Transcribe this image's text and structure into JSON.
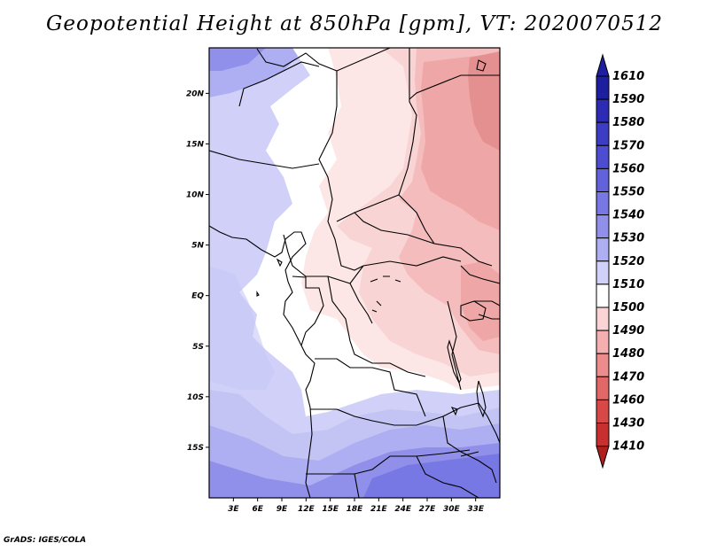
{
  "title": "Geopotential Height at 850hPa [gpm], VT: 2020070512",
  "credit": "GrADS: IGES/COLA",
  "map": {
    "lat_range": [
      -20,
      24.5
    ],
    "lon_range": [
      0,
      36
    ],
    "lat_ticks": [
      "20N",
      "15N",
      "10N",
      "5N",
      "EQ",
      "5S",
      "10S",
      "15S"
    ],
    "lat_tick_values": [
      20,
      15,
      10,
      5,
      0,
      -5,
      -10,
      -15
    ],
    "lon_ticks": [
      "3E",
      "6E",
      "9E",
      "12E",
      "15E",
      "18E",
      "21E",
      "24E",
      "27E",
      "30E",
      "33E"
    ],
    "lon_tick_values": [
      3,
      6,
      9,
      12,
      15,
      18,
      21,
      24,
      27,
      30,
      33
    ]
  },
  "colorbar": {
    "labels": [
      "1610",
      "1590",
      "1580",
      "1570",
      "1560",
      "1550",
      "1540",
      "1530",
      "1520",
      "1510",
      "1500",
      "1490",
      "1480",
      "1470",
      "1460",
      "1430",
      "1410"
    ],
    "colors": [
      "#1e1ea0",
      "#2b2bb4",
      "#3c3cc4",
      "#4d4dd2",
      "#6262dc",
      "#7878e4",
      "#9090ea",
      "#aeaef2",
      "#d0d0f8",
      "#ffffff",
      "#fad4d4",
      "#f4b0b0",
      "#ec8c8c",
      "#e26868",
      "#d84848",
      "#c83030",
      "#b01e1e"
    ]
  },
  "field_colors": {
    "h1530": "#aeaef2",
    "h1520": "#d0d0f8",
    "h1525": "#c4c4f4",
    "h1510": "#ffffff",
    "h1500": "#fce6e6",
    "h1495": "#f8d4d4",
    "h1490": "#f4bcbc",
    "h1485": "#efa6a6",
    "h1480": "#e49090",
    "h1540": "#9090ea",
    "h1550": "#7878e4"
  }
}
